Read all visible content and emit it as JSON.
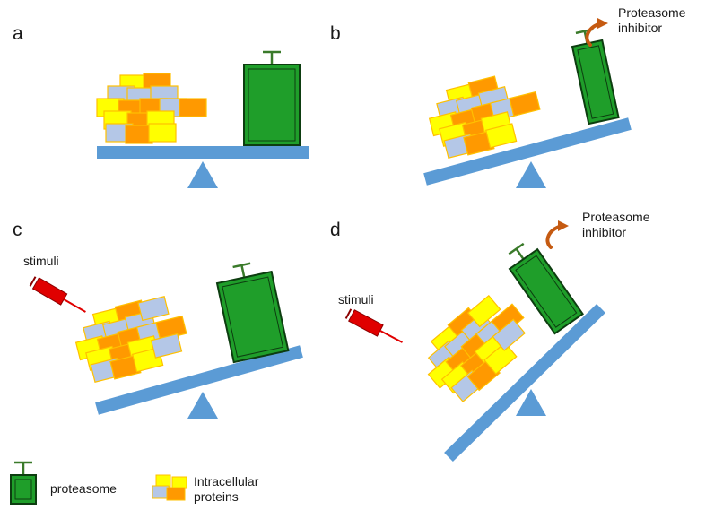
{
  "panels": {
    "a": {
      "label": "a"
    },
    "b": {
      "label": "b",
      "inhibitor_label": "Proteasome\ninhibitor"
    },
    "c": {
      "label": "c",
      "stimuli_label": "stimuli"
    },
    "d": {
      "label": "d",
      "inhibitor_label": "Proteasome\ninhibitor",
      "stimuli_label": "stimuli"
    }
  },
  "legend": {
    "proteasome_label": "proteasome",
    "proteins_label": "Intracellular\nproteins"
  },
  "colors": {
    "beam": "#5b9bd5",
    "proteasome_fill": "#1f9e2a",
    "proteasome_stroke": "#0d3d10",
    "protein_yellow": "#ffff00",
    "protein_orange": "#ff9900",
    "protein_grey": "#b4c7e7",
    "protein_stroke": "#ffc000",
    "stimuli_red": "#e00000",
    "inhibitor_arrow": "#c55a11"
  }
}
